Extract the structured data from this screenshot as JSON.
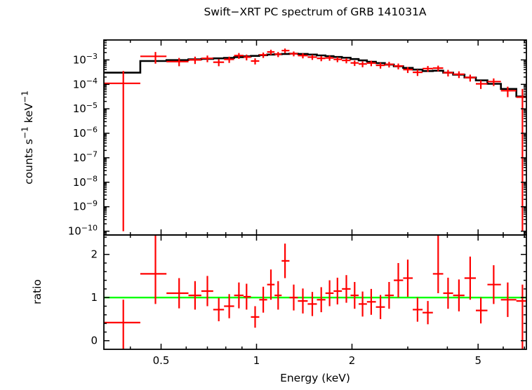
{
  "chart_data": {
    "type": "scatter",
    "title": "Swift−XRT PC spectrum of GRB 141031A",
    "xlabel": "Energy (keV)",
    "xscale": "log",
    "xlim": [
      0.33,
      7.1
    ],
    "x_major_ticks": [
      0.5,
      1,
      2,
      5
    ],
    "x_major_tick_labels": [
      "0.5",
      "1",
      "2",
      "5"
    ],
    "x_minor_ticks": [
      0.4,
      0.6,
      0.7,
      0.8,
      0.9,
      3,
      4,
      6,
      7
    ],
    "colors": {
      "data": "#ff0000",
      "model": "#000000",
      "reference": "#00ff00",
      "axes": "#000000",
      "background": "#ffffff"
    },
    "point_format": [
      "x",
      "xlo",
      "xhi",
      "y",
      "ylo",
      "yhi"
    ],
    "panels": [
      {
        "name": "spectrum",
        "ylabel": "counts s^−1 keV^−1",
        "yscale": "log",
        "ylim": [
          7e-11,
          0.0065
        ],
        "y_major_ticks": [
          0.001,
          0.0001,
          1e-05,
          1e-06,
          1e-07,
          1e-08,
          1e-09,
          1e-10
        ],
        "y_major_tick_labels": [
          "10^−3",
          "10^−4",
          "10^−5",
          "10^−6",
          "10^−7",
          "10^−8",
          "10^−9",
          "10^−10"
        ],
        "data_points": [
          [
            0.38,
            0.33,
            0.43,
            0.00011,
            1e-10,
            0.00035
          ],
          [
            0.48,
            0.43,
            0.52,
            0.0014,
            0.0007,
            0.0021
          ],
          [
            0.57,
            0.52,
            0.61,
            0.00085,
            0.00055,
            0.0012
          ],
          [
            0.64,
            0.61,
            0.67,
            0.001,
            0.00068,
            0.00135
          ],
          [
            0.7,
            0.67,
            0.73,
            0.00115,
            0.0008,
            0.0015
          ],
          [
            0.76,
            0.73,
            0.79,
            0.0008,
            0.00055,
            0.00105
          ],
          [
            0.82,
            0.79,
            0.85,
            0.00105,
            0.00075,
            0.00135
          ],
          [
            0.88,
            0.85,
            0.91,
            0.0015,
            0.0011,
            0.0019
          ],
          [
            0.93,
            0.91,
            0.96,
            0.0013,
            0.00095,
            0.00165
          ],
          [
            0.99,
            0.96,
            1.02,
            0.0009,
            0.00065,
            0.00115
          ],
          [
            1.05,
            1.02,
            1.08,
            0.0016,
            0.0012,
            0.002
          ],
          [
            1.11,
            1.08,
            1.14,
            0.0021,
            0.0016,
            0.0026
          ],
          [
            1.17,
            1.14,
            1.2,
            0.0017,
            0.0013,
            0.0021
          ],
          [
            1.23,
            1.2,
            1.27,
            0.0024,
            0.0019,
            0.0029
          ],
          [
            1.31,
            1.27,
            1.35,
            0.0018,
            0.0014,
            0.0022
          ],
          [
            1.4,
            1.35,
            1.45,
            0.0015,
            0.00115,
            0.00185
          ],
          [
            1.5,
            1.45,
            1.55,
            0.0013,
            0.001,
            0.0016
          ],
          [
            1.6,
            1.55,
            1.65,
            0.00115,
            0.00088,
            0.00142
          ],
          [
            1.7,
            1.65,
            1.75,
            0.0012,
            0.00092,
            0.00148
          ],
          [
            1.8,
            1.75,
            1.86,
            0.00105,
            0.0008,
            0.0013
          ],
          [
            1.92,
            1.86,
            1.98,
            0.00095,
            0.00072,
            0.00118
          ],
          [
            2.04,
            1.98,
            2.1,
            0.00075,
            0.00056,
            0.00094
          ],
          [
            2.16,
            2.1,
            2.23,
            0.00068,
            0.0005,
            0.00086
          ],
          [
            2.3,
            2.23,
            2.38,
            0.00074,
            0.00055,
            0.00093
          ],
          [
            2.46,
            2.38,
            2.54,
            0.0006,
            0.00044,
            0.00076
          ],
          [
            2.62,
            2.54,
            2.71,
            0.00066,
            0.00049,
            0.00083
          ],
          [
            2.8,
            2.71,
            2.9,
            0.00056,
            0.00041,
            0.00071
          ],
          [
            3.0,
            2.9,
            3.11,
            0.0004,
            0.00029,
            0.00051
          ],
          [
            3.22,
            3.11,
            3.34,
            0.00031,
            0.00022,
            0.0004
          ],
          [
            3.47,
            3.34,
            3.6,
            0.00044,
            0.00032,
            0.00056
          ],
          [
            3.74,
            3.6,
            3.88,
            0.00046,
            0.00034,
            0.00058
          ],
          [
            4.02,
            3.88,
            4.17,
            0.0003,
            0.00021,
            0.00039
          ],
          [
            4.35,
            4.17,
            4.53,
            0.00026,
            0.00018,
            0.00034
          ],
          [
            4.72,
            4.53,
            4.92,
            0.00019,
            0.00013,
            0.00025
          ],
          [
            5.1,
            4.92,
            5.35,
            0.000105,
            6.5e-05,
            0.000145
          ],
          [
            5.6,
            5.35,
            5.9,
            0.00013,
            8.5e-05,
            0.000175
          ],
          [
            6.2,
            5.9,
            6.6,
            5.5e-05,
            3e-05,
            8e-05
          ],
          [
            6.9,
            6.6,
            7.1,
            3e-05,
            1e-10,
            6.5e-05
          ]
        ],
        "model_step": {
          "edges": [
            0.33,
            0.43,
            0.52,
            0.61,
            0.67,
            0.73,
            0.79,
            0.85,
            0.91,
            0.96,
            1.02,
            1.08,
            1.14,
            1.2,
            1.27,
            1.35,
            1.45,
            1.55,
            1.65,
            1.75,
            1.86,
            1.98,
            2.1,
            2.23,
            2.38,
            2.54,
            2.71,
            2.9,
            3.11,
            3.34,
            3.6,
            3.88,
            4.17,
            4.53,
            4.92,
            5.35,
            5.9,
            6.6,
            7.1
          ],
          "values": [
            0.0003,
            0.0009,
            0.00098,
            0.00105,
            0.0011,
            0.00115,
            0.0012,
            0.0013,
            0.0014,
            0.00145,
            0.00155,
            0.00165,
            0.0017,
            0.00175,
            0.0018,
            0.00175,
            0.00165,
            0.00152,
            0.00142,
            0.00132,
            0.00122,
            0.00108,
            0.00095,
            0.00084,
            0.00074,
            0.00064,
            0.00055,
            0.00047,
            0.0004,
            0.00035,
            0.00036,
            0.0003,
            0.00025,
            0.00019,
            0.000145,
            0.000105,
            6.5e-05,
            3.2e-05
          ]
        }
      },
      {
        "name": "ratio",
        "ylabel": "ratio",
        "yscale": "linear",
        "ylim": [
          -0.2,
          2.45
        ],
        "y_major_ticks": [
          0,
          1,
          2
        ],
        "y_major_tick_labels": [
          "0",
          "1",
          "2"
        ],
        "reference_line": 1,
        "data_points": [
          [
            0.38,
            0.33,
            0.43,
            0.42,
            -0.5,
            0.95
          ],
          [
            0.48,
            0.43,
            0.52,
            1.55,
            0.85,
            2.5
          ],
          [
            0.57,
            0.52,
            0.61,
            1.1,
            0.75,
            1.45
          ],
          [
            0.64,
            0.61,
            0.67,
            1.05,
            0.72,
            1.38
          ],
          [
            0.7,
            0.67,
            0.73,
            1.15,
            0.8,
            1.5
          ],
          [
            0.76,
            0.73,
            0.79,
            0.72,
            0.45,
            0.99
          ],
          [
            0.82,
            0.79,
            0.85,
            0.8,
            0.52,
            1.08
          ],
          [
            0.88,
            0.85,
            0.91,
            1.05,
            0.75,
            1.35
          ],
          [
            0.93,
            0.91,
            0.96,
            1.02,
            0.72,
            1.32
          ],
          [
            0.99,
            0.96,
            1.02,
            0.55,
            0.3,
            0.8
          ],
          [
            1.05,
            1.02,
            1.08,
            0.95,
            0.65,
            1.25
          ],
          [
            1.11,
            1.08,
            1.14,
            1.3,
            0.95,
            1.65
          ],
          [
            1.17,
            1.14,
            1.2,
            1.05,
            0.72,
            1.38
          ],
          [
            1.23,
            1.2,
            1.27,
            1.85,
            1.45,
            2.25
          ],
          [
            1.31,
            1.27,
            1.35,
            1.0,
            0.7,
            1.3
          ],
          [
            1.4,
            1.35,
            1.45,
            0.92,
            0.63,
            1.21
          ],
          [
            1.5,
            1.45,
            1.55,
            0.85,
            0.57,
            1.13
          ],
          [
            1.6,
            1.55,
            1.65,
            0.95,
            0.66,
            1.24
          ],
          [
            1.7,
            1.65,
            1.75,
            1.1,
            0.8,
            1.4
          ],
          [
            1.8,
            1.75,
            1.86,
            1.15,
            0.84,
            1.46
          ],
          [
            1.92,
            1.86,
            1.98,
            1.2,
            0.88,
            1.52
          ],
          [
            2.04,
            1.98,
            2.1,
            1.05,
            0.74,
            1.36
          ],
          [
            2.16,
            2.1,
            2.23,
            0.85,
            0.56,
            1.14
          ],
          [
            2.3,
            2.23,
            2.38,
            0.9,
            0.6,
            1.2
          ],
          [
            2.46,
            2.38,
            2.54,
            0.78,
            0.5,
            1.06
          ],
          [
            2.62,
            2.54,
            2.71,
            1.05,
            0.74,
            1.36
          ],
          [
            2.8,
            2.71,
            2.9,
            1.4,
            1.0,
            1.8
          ],
          [
            3.0,
            2.9,
            3.11,
            1.45,
            1.02,
            1.88
          ],
          [
            3.22,
            3.11,
            3.34,
            0.72,
            0.44,
            1.0
          ],
          [
            3.47,
            3.34,
            3.6,
            0.65,
            0.38,
            0.92
          ],
          [
            3.74,
            3.6,
            3.88,
            1.55,
            1.1,
            2.5
          ],
          [
            4.02,
            3.88,
            4.17,
            1.1,
            0.74,
            1.46
          ],
          [
            4.35,
            4.17,
            4.53,
            1.05,
            0.68,
            1.42
          ],
          [
            4.72,
            4.53,
            4.92,
            1.45,
            0.95,
            1.95
          ],
          [
            5.1,
            4.92,
            5.35,
            0.7,
            0.4,
            1.0
          ],
          [
            5.6,
            5.35,
            5.9,
            1.3,
            0.85,
            1.75
          ],
          [
            6.2,
            5.9,
            6.6,
            0.95,
            0.55,
            1.35
          ],
          [
            6.9,
            6.6,
            7.1,
            0.92,
            -0.5,
            1.3
          ]
        ]
      }
    ]
  }
}
